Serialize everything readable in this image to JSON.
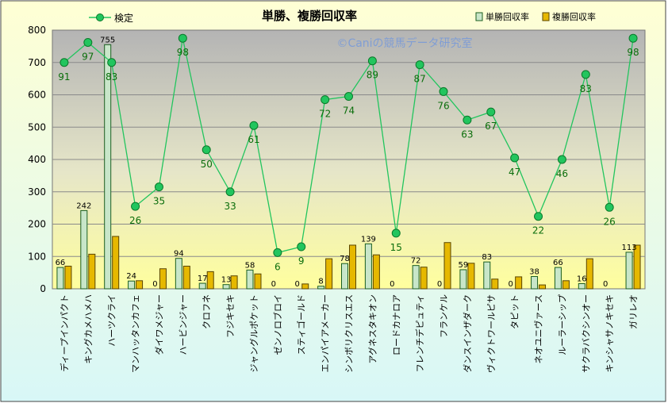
{
  "chart_data": {
    "type": "bar",
    "title": "単勝、複勝回収率",
    "watermark": "©Caniの競馬データ研究室",
    "xlabel": "",
    "ylabel": "",
    "ylim": [
      0,
      800
    ],
    "yticks": [
      "0",
      "100",
      "200",
      "300",
      "400",
      "500",
      "600",
      "700",
      "800"
    ],
    "grid": true,
    "legend_position": "top",
    "categories": [
      "ディープインパクト",
      "キングカメハメハ",
      "ハーツクライ",
      "マンハッタンカフェ",
      "ダイワメジャー",
      "ハービンジャー",
      "クロフネ",
      "フジキセキ",
      "ジャングルポケット",
      "ゼンノロブロイ",
      "スティゴールド",
      "エンパイアメーカー",
      "シンボリクリスエス",
      "アグネスタキオン",
      "ロードカナロア",
      "フレンチデピュティ",
      "フランケル",
      "ダンスインザダーク",
      "ヴィクトワールピサ",
      "タピット",
      "ネオユニヴァース",
      "ルーラーシップ",
      "サクラバクシンオー",
      "キンシャサノキセキ",
      "ガリレオ"
    ],
    "series": [
      {
        "name": "単勝回収率",
        "kind": "bar",
        "color": "#c8e6c9",
        "edge": "#1b5e20",
        "values": [
          66,
          242,
          755,
          24,
          0,
          94,
          17,
          13,
          58,
          0,
          0,
          8,
          78,
          139,
          0,
          72,
          0,
          59,
          83,
          0,
          38,
          66,
          16,
          0,
          113
        ]
      },
      {
        "name": "複勝回収率",
        "kind": "bar",
        "color": "#e6b800",
        "edge": "#5a4500",
        "values": [
          70,
          107,
          162,
          25,
          62,
          70,
          53,
          40,
          46,
          0,
          15,
          93,
          135,
          105,
          0,
          67,
          143,
          79,
          30,
          37,
          12,
          25,
          93,
          0,
          135
        ]
      },
      {
        "name": "検定",
        "kind": "line",
        "color": "#22c55e",
        "values": [
          91,
          97,
          83,
          26,
          35,
          98,
          50,
          33,
          61,
          6,
          9,
          72,
          74,
          89,
          15,
          87,
          76,
          63,
          67,
          47,
          22,
          46,
          83,
          26,
          98
        ],
        "plot_values": [
          700,
          762,
          700,
          255,
          315,
          775,
          430,
          300,
          505,
          112,
          130,
          585,
          595,
          705,
          172,
          693,
          610,
          522,
          547,
          405,
          224,
          400,
          663,
          252,
          775
        ]
      }
    ]
  }
}
